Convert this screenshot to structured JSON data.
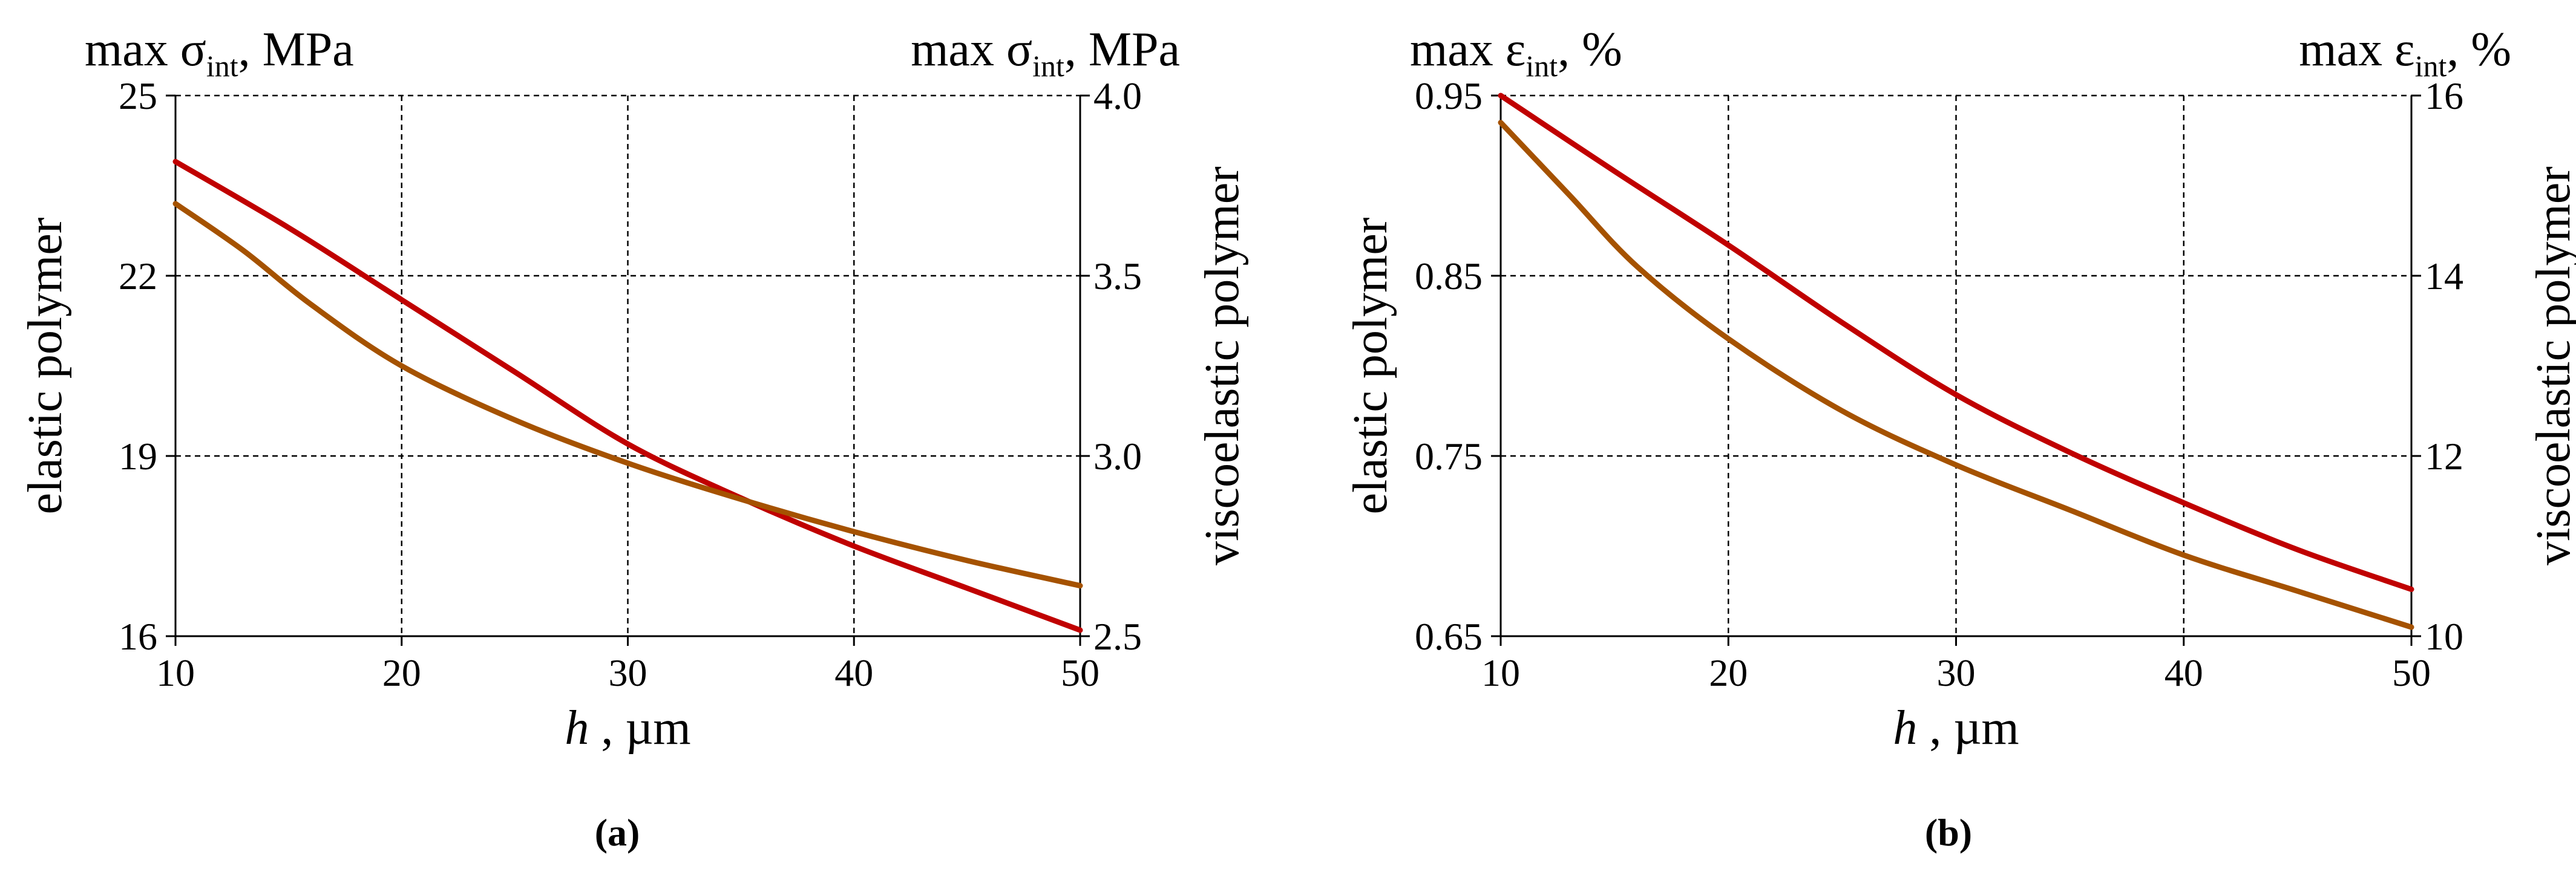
{
  "colors": {
    "elastic": "#c00000",
    "viscoelastic": "#a55200",
    "grid": "#000000"
  },
  "chart_data": [
    {
      "type": "line",
      "panel_label": "(a)",
      "xlabel": {
        "var": "h",
        "unit": "µm"
      },
      "x_ticks": [
        10,
        20,
        30,
        40,
        50
      ],
      "xlim": [
        10,
        50
      ],
      "left_axis_title": {
        "main": "max σ",
        "sub": "int",
        "unit": ", MPa"
      },
      "right_axis_title": {
        "main": "max σ",
        "sub": "int",
        "unit": ", MPa"
      },
      "left_ylabel": "elastic polymer",
      "right_ylabel": "viscoelastic polymer",
      "left_ylim": [
        16,
        25
      ],
      "left_ticks": [
        "16",
        "19",
        "22",
        "25"
      ],
      "right_ylim": [
        2.5,
        4.0
      ],
      "right_ticks": [
        "2.5",
        "3.0",
        "3.5",
        "4.0"
      ],
      "series": [
        {
          "name": "elastic polymer",
          "axis": "left",
          "color_key": "elastic",
          "x": [
            10,
            15,
            20,
            25,
            30,
            35,
            40,
            45,
            50
          ],
          "y": [
            23.9,
            22.8,
            21.6,
            20.4,
            19.2,
            18.3,
            17.5,
            16.8,
            16.1
          ]
        },
        {
          "name": "viscoelastic polymer",
          "axis": "right",
          "color_key": "viscoelastic",
          "x": [
            10,
            13,
            16,
            20,
            25,
            30,
            35,
            40,
            45,
            50
          ],
          "y": [
            3.7,
            3.57,
            3.42,
            3.25,
            3.1,
            2.98,
            2.88,
            2.79,
            2.71,
            2.64
          ]
        }
      ]
    },
    {
      "type": "line",
      "panel_label": "(b)",
      "xlabel": {
        "var": "h",
        "unit": "µm"
      },
      "x_ticks": [
        10,
        20,
        30,
        40,
        50
      ],
      "xlim": [
        10,
        50
      ],
      "left_axis_title": {
        "main": "max ε",
        "sub": "int",
        "unit": ", %"
      },
      "right_axis_title": {
        "main": "max ε",
        "sub": "int",
        "unit": ", %"
      },
      "left_ylabel": "elastic polymer",
      "right_ylabel": "viscoelastic polymer",
      "left_ylim": [
        0.65,
        0.95
      ],
      "left_ticks": [
        "0.65",
        "0.75",
        "0.85",
        "0.95"
      ],
      "right_ylim": [
        10,
        16
      ],
      "right_ticks": [
        "10",
        "12",
        "14",
        "16"
      ],
      "series": [
        {
          "name": "elastic polymer",
          "axis": "left",
          "color_key": "elastic",
          "x": [
            10,
            15,
            20,
            25,
            30,
            35,
            40,
            45,
            50
          ],
          "y": [
            0.95,
            0.908,
            0.867,
            0.824,
            0.784,
            0.752,
            0.724,
            0.698,
            0.676
          ]
        },
        {
          "name": "viscoelastic polymer",
          "axis": "right",
          "color_key": "viscoelastic",
          "x": [
            10,
            13,
            16,
            20,
            25,
            30,
            35,
            40,
            45,
            50
          ],
          "y": [
            15.7,
            14.9,
            14.1,
            13.3,
            12.5,
            11.9,
            11.4,
            10.9,
            10.5,
            10.1
          ]
        }
      ]
    }
  ]
}
